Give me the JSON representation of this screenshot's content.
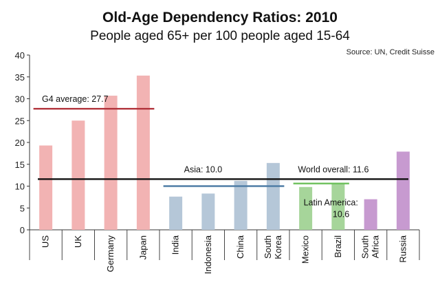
{
  "chart_data": {
    "type": "bar",
    "title": "Old-Age Dependency Ratios: 2010",
    "subtitle": "People aged 65+ per 100 people aged 15-64",
    "source": "Source: UN, Credit Suisse",
    "ylim": [
      0,
      40
    ],
    "yticks": [
      0,
      5,
      10,
      15,
      20,
      25,
      30,
      35,
      40
    ],
    "categories": [
      "US",
      "UK",
      "Germany",
      "Japan",
      "India",
      "Indonesia",
      "China",
      "South Korea",
      "Mexico",
      "Brazil",
      "South Africa",
      "Russia"
    ],
    "category_lines": [
      [
        "US"
      ],
      [
        "UK"
      ],
      [
        "Germany"
      ],
      [
        "Japan"
      ],
      [
        "India"
      ],
      [
        "Indonesia"
      ],
      [
        "China"
      ],
      [
        "South",
        "Korea"
      ],
      [
        "Mexico"
      ],
      [
        "Brazil"
      ],
      [
        "South",
        "Africa"
      ],
      [
        "Russia"
      ]
    ],
    "values": [
      19.3,
      25.0,
      30.7,
      35.3,
      7.6,
      8.3,
      11.2,
      15.3,
      9.8,
      10.5,
      7.0,
      17.9
    ],
    "group_colors": [
      "#f2b3b3",
      "#f2b3b3",
      "#f2b3b3",
      "#f2b3b3",
      "#b5c7d8",
      "#b5c7d8",
      "#b5c7d8",
      "#b5c7d8",
      "#a6d59a",
      "#a6d59a",
      "#c79ad0",
      "#c79ad0"
    ],
    "reference_lines": [
      {
        "label": "G4 average: 27.7",
        "value": 27.7,
        "from": 0,
        "to": 3,
        "color": "#b03038"
      },
      {
        "label": "Asia: 10.0",
        "value": 10.0,
        "from": 4,
        "to": 7,
        "color": "#4f7da5"
      },
      {
        "label": "Latin America:",
        "label2": "10.6",
        "value": 10.6,
        "from": 8,
        "to": 9,
        "color": "#6bbf59"
      },
      {
        "label": "World overall: 11.6",
        "value": 11.6,
        "from": 0,
        "to": 11,
        "color": "#111111"
      }
    ]
  }
}
